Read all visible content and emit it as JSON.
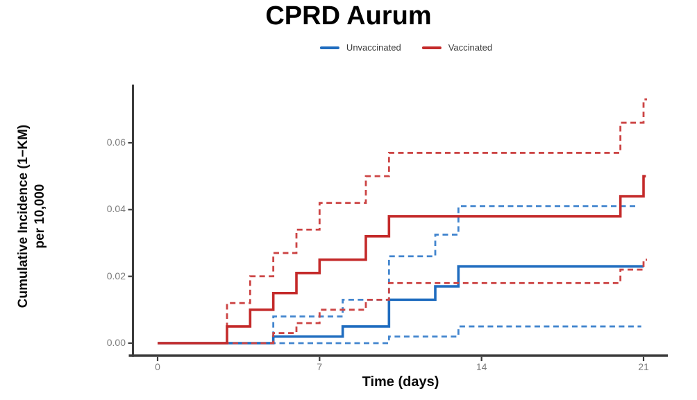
{
  "header": {
    "title": "CPRD Aurum"
  },
  "legend": {
    "items": [
      {
        "label": "Unvaccinated",
        "color": "#1F6CBF"
      },
      {
        "label": "Vaccinated",
        "color": "#C42A2A"
      }
    ]
  },
  "axes": {
    "x_title": "Time (days)",
    "y_title_line1": "Cumulative Incidence (1−KM)",
    "y_title_line2": "per 10,000"
  },
  "chart_data": {
    "type": "line",
    "subtype": "step",
    "title": "CPRD Aurum",
    "xlabel": "Time (days)",
    "ylabel": "Cumulative Incidence (1−KM) per 10,000",
    "grid": false,
    "legend_position": "top-center",
    "xlim": [
      -1.25,
      22.1
    ],
    "ylim": [
      0,
      0.0775
    ],
    "axis_color": "#3C3C3C",
    "tick_label_color": "#7C7C7C",
    "xticks": [
      {
        "label": "0",
        "value": 0
      },
      {
        "label": "7",
        "value": 7
      },
      {
        "label": "14",
        "value": 14
      },
      {
        "label": "21",
        "value": 21
      }
    ],
    "yticks": [
      {
        "label": "0.00",
        "value": 0.0
      },
      {
        "label": "0.02",
        "value": 0.02
      },
      {
        "label": "0.04",
        "value": 0.04
      },
      {
        "label": "0.06",
        "value": 0.06
      }
    ],
    "series": [
      {
        "name": "Unvaccinated upper 95% CI",
        "group": "Unvaccinated",
        "color": "#4285CE",
        "dash": true,
        "width": 2.8,
        "end": 20.75,
        "points": [
          [
            0,
            0
          ],
          [
            5,
            0.008
          ],
          [
            8,
            0.013
          ],
          [
            10,
            0.026
          ],
          [
            12,
            0.0325
          ],
          [
            13,
            0.041
          ]
        ]
      },
      {
        "name": "Unvaccinated lower 95% CI",
        "group": "Unvaccinated",
        "color": "#4285CE",
        "dash": true,
        "width": 2.8,
        "end": 20.9,
        "points": [
          [
            0,
            0
          ],
          [
            10,
            0.002
          ],
          [
            13,
            0.005
          ]
        ]
      },
      {
        "name": "Unvaccinated estimate",
        "group": "Unvaccinated",
        "color": "#1F6CBF",
        "dash": false,
        "width": 3.6,
        "end": 21.0,
        "points": [
          [
            0,
            0
          ],
          [
            5,
            0.002
          ],
          [
            8,
            0.005
          ],
          [
            10,
            0.013
          ],
          [
            12,
            0.017
          ],
          [
            13,
            0.023
          ]
        ]
      },
      {
        "name": "Vaccinated upper 95% CI",
        "group": "Vaccinated",
        "color": "#CC4444",
        "dash": true,
        "width": 2.8,
        "end": 21.15,
        "points": [
          [
            0,
            0
          ],
          [
            3,
            0.012
          ],
          [
            4,
            0.02
          ],
          [
            5,
            0.027
          ],
          [
            6,
            0.034
          ],
          [
            7,
            0.042
          ],
          [
            9,
            0.05
          ],
          [
            10,
            0.057
          ],
          [
            20,
            0.066
          ],
          [
            21,
            0.073
          ]
        ]
      },
      {
        "name": "Vaccinated lower 95% CI",
        "group": "Vaccinated",
        "color": "#CC4444",
        "dash": true,
        "width": 2.8,
        "end": 21.15,
        "points": [
          [
            0,
            0
          ],
          [
            5,
            0.003
          ],
          [
            6,
            0.006
          ],
          [
            7,
            0.01
          ],
          [
            9,
            0.013
          ],
          [
            10,
            0.018
          ],
          [
            20,
            0.022
          ],
          [
            21,
            0.025
          ]
        ]
      },
      {
        "name": "Vaccinated estimate",
        "group": "Vaccinated",
        "color": "#C42A2A",
        "dash": false,
        "width": 3.6,
        "end": 21.1,
        "points": [
          [
            0,
            0
          ],
          [
            3,
            0.005
          ],
          [
            4,
            0.01
          ],
          [
            5,
            0.015
          ],
          [
            6,
            0.021
          ],
          [
            7,
            0.025
          ],
          [
            9,
            0.032
          ],
          [
            10,
            0.038
          ],
          [
            20,
            0.044
          ],
          [
            21,
            0.05
          ]
        ]
      }
    ]
  }
}
